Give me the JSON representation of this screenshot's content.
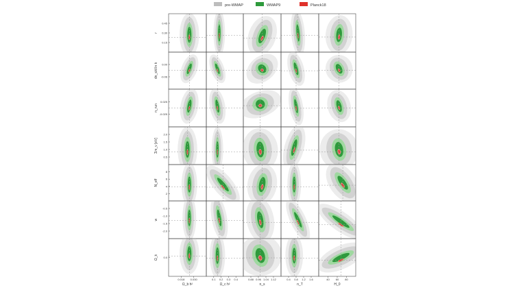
{
  "chart_data": {
    "type": "contour",
    "legend": {
      "placement": "top-center",
      "entries": [
        {
          "name": "pre-WMAP",
          "color": "#bdbdbd"
        },
        {
          "name": "WMAP9",
          "color": "#2e9a3c"
        },
        {
          "name": "Planck18",
          "color": "#e0322c"
        }
      ]
    },
    "columns": [
      {
        "label": "Ω_b h²",
        "ticks": [
          "0.018",
          "0.030"
        ]
      },
      {
        "label": "Ω_c h²",
        "ticks": [
          "0.1",
          "0.2",
          "0.3",
          "0.4"
        ]
      },
      {
        "label": "n_s",
        "ticks": [
          "0.88",
          "0.96",
          "1.04",
          "1.12"
        ]
      },
      {
        "label": "n_T",
        "ticks": [
          "0.4",
          "0.8",
          "1.2",
          "1.6"
        ]
      },
      {
        "label": "H_0",
        "ticks": [
          "40",
          "60",
          "80"
        ]
      }
    ],
    "rows": [
      {
        "label": "r",
        "ticks": [
          "0.45",
          "0.30",
          "0.15"
        ]
      },
      {
        "label": "dn_s/d ln k",
        "ticks": [
          "0.00",
          "-0.06"
        ]
      },
      {
        "label": "n_run",
        "ticks": [
          "0.025",
          "-0.025"
        ]
      },
      {
        "label": "Σm_ν [eV]",
        "ticks": [
          "2.0",
          "1.5",
          "1.0",
          "0.5"
        ]
      },
      {
        "label": "N_eff",
        "ticks": [
          "8",
          "6",
          "4",
          "2"
        ]
      },
      {
        "label": "w",
        "ticks": [
          "-0.5",
          "-1.0",
          "-1.5",
          "-2.0"
        ]
      },
      {
        "label": "Ω_k",
        "ticks": [
          "0.0"
        ]
      }
    ],
    "grid": false,
    "reference_lines": true
  }
}
